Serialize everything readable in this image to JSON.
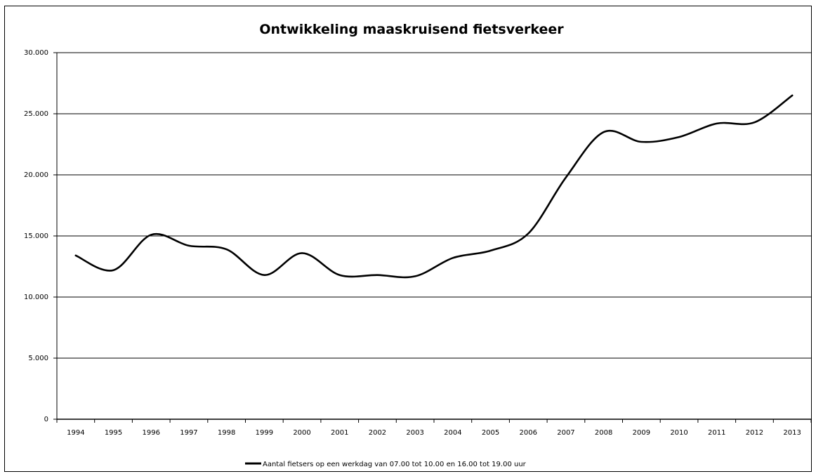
{
  "chart_data": {
    "type": "line",
    "title": "Ontwikkeling maaskruisend fietsverkeer",
    "xlabel": "",
    "ylabel": "",
    "categories": [
      "1994",
      "1995",
      "1996",
      "1997",
      "1998",
      "1999",
      "2000",
      "2001",
      "2002",
      "2003",
      "2004",
      "2005",
      "2006",
      "2007",
      "2008",
      "2009",
      "2010",
      "2011",
      "2012",
      "2013"
    ],
    "series": [
      {
        "name": "Aantal fietsers op een werkdag van 07.00 tot 10.00 en 16.00 tot 19.00 uur",
        "color": "#000000",
        "values": [
          13400,
          12200,
          15100,
          14200,
          13900,
          11800,
          13600,
          11800,
          11800,
          11700,
          13200,
          13800,
          15200,
          19800,
          23500,
          22700,
          23100,
          24200,
          24300,
          26500
        ]
      }
    ],
    "ylim": [
      0,
      30000
    ],
    "yticks": [
      0,
      5000,
      10000,
      15000,
      20000,
      25000,
      30000
    ],
    "ytick_labels": [
      "0",
      "5.000",
      "10.000",
      "15.000",
      "20.000",
      "25.000",
      "30.000"
    ],
    "grid": true,
    "legend_position": "bottom"
  }
}
